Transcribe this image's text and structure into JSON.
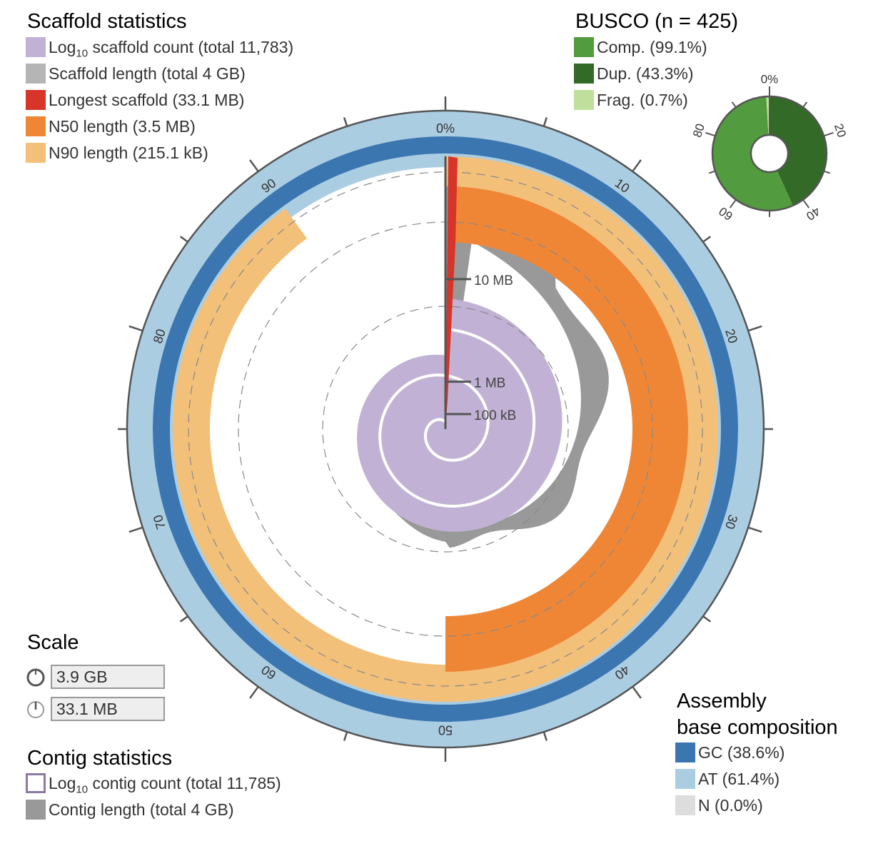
{
  "scaffold_legend": {
    "title": "Scaffold statistics",
    "items": [
      {
        "prefix": "Log",
        "sub": "10",
        "suffix": " scaffold count (total 11,783)",
        "color": "#c1b2d5"
      },
      {
        "prefix": "Scaffold length (total 4 GB)",
        "color": "#b5b5b5"
      },
      {
        "prefix": "Longest scaffold (33.1 MB)",
        "color": "#d7342a"
      },
      {
        "prefix": "N50 length (3.5 MB)",
        "color": "#ef8636"
      },
      {
        "prefix": "N90 length (215.1 kB)",
        "color": "#f3c07a"
      }
    ]
  },
  "busco": {
    "title": "BUSCO (n = 425)",
    "items": [
      {
        "label": "Comp. (99.1%)",
        "color": "#529b3e"
      },
      {
        "label": "Dup. (43.3%)",
        "color": "#346a28"
      },
      {
        "label": "Frag. (0.7%)",
        "color": "#bfe09c"
      }
    ],
    "complete_pct": 99.1,
    "duplicated_pct": 43.3,
    "fragmented_pct": 0.7,
    "tick_labels": [
      "0%",
      "20",
      "40",
      "60",
      "80"
    ]
  },
  "scale": {
    "title": "Scale",
    "circumference_value": "3.9 GB",
    "radius_value": "33.1 MB"
  },
  "contig_legend": {
    "title": "Contig statistics",
    "items": [
      {
        "prefix": "Log",
        "sub": "10",
        "suffix": " contig count (total 11,785)",
        "color": "#8c7aa3",
        "outline": true
      },
      {
        "prefix": "Contig length (total 4 GB)",
        "color": "#999999"
      }
    ]
  },
  "composition": {
    "title_line1": "Assembly",
    "title_line2": "base composition",
    "items": [
      {
        "label": "GC (38.6%)",
        "color": "#3b76b0"
      },
      {
        "label": "AT (61.4%)",
        "color": "#abcde2"
      },
      {
        "label": "N (0.0%)",
        "color": "#dddddd"
      }
    ],
    "gc_pct": 38.6
  },
  "chart_data": {
    "type": "snail",
    "percent_axis_labels": [
      "0%",
      "10",
      "20",
      "30",
      "40",
      "50",
      "60",
      "70",
      "80",
      "90"
    ],
    "radial_axis_labels": [
      "100 kB",
      "1 MB",
      "10 MB"
    ],
    "longest_scaffold_mb": 33.1,
    "n50_mb": 3.5,
    "n90_kb": 215.1,
    "n50_percent": 50,
    "n90_percent": 90,
    "scaffold_count": 11783,
    "contig_count": 11785,
    "total_length": "4 GB",
    "gc_percent": 38.6,
    "at_percent": 61.4,
    "n_percent": 0.0,
    "colors": {
      "scaffold_length": "#999999",
      "longest": "#d7342a",
      "n50": "#ef8636",
      "n90": "#f3c07a",
      "count": "#c1b2d5",
      "gc": "#3b76b0",
      "at": "#abcde2"
    }
  }
}
